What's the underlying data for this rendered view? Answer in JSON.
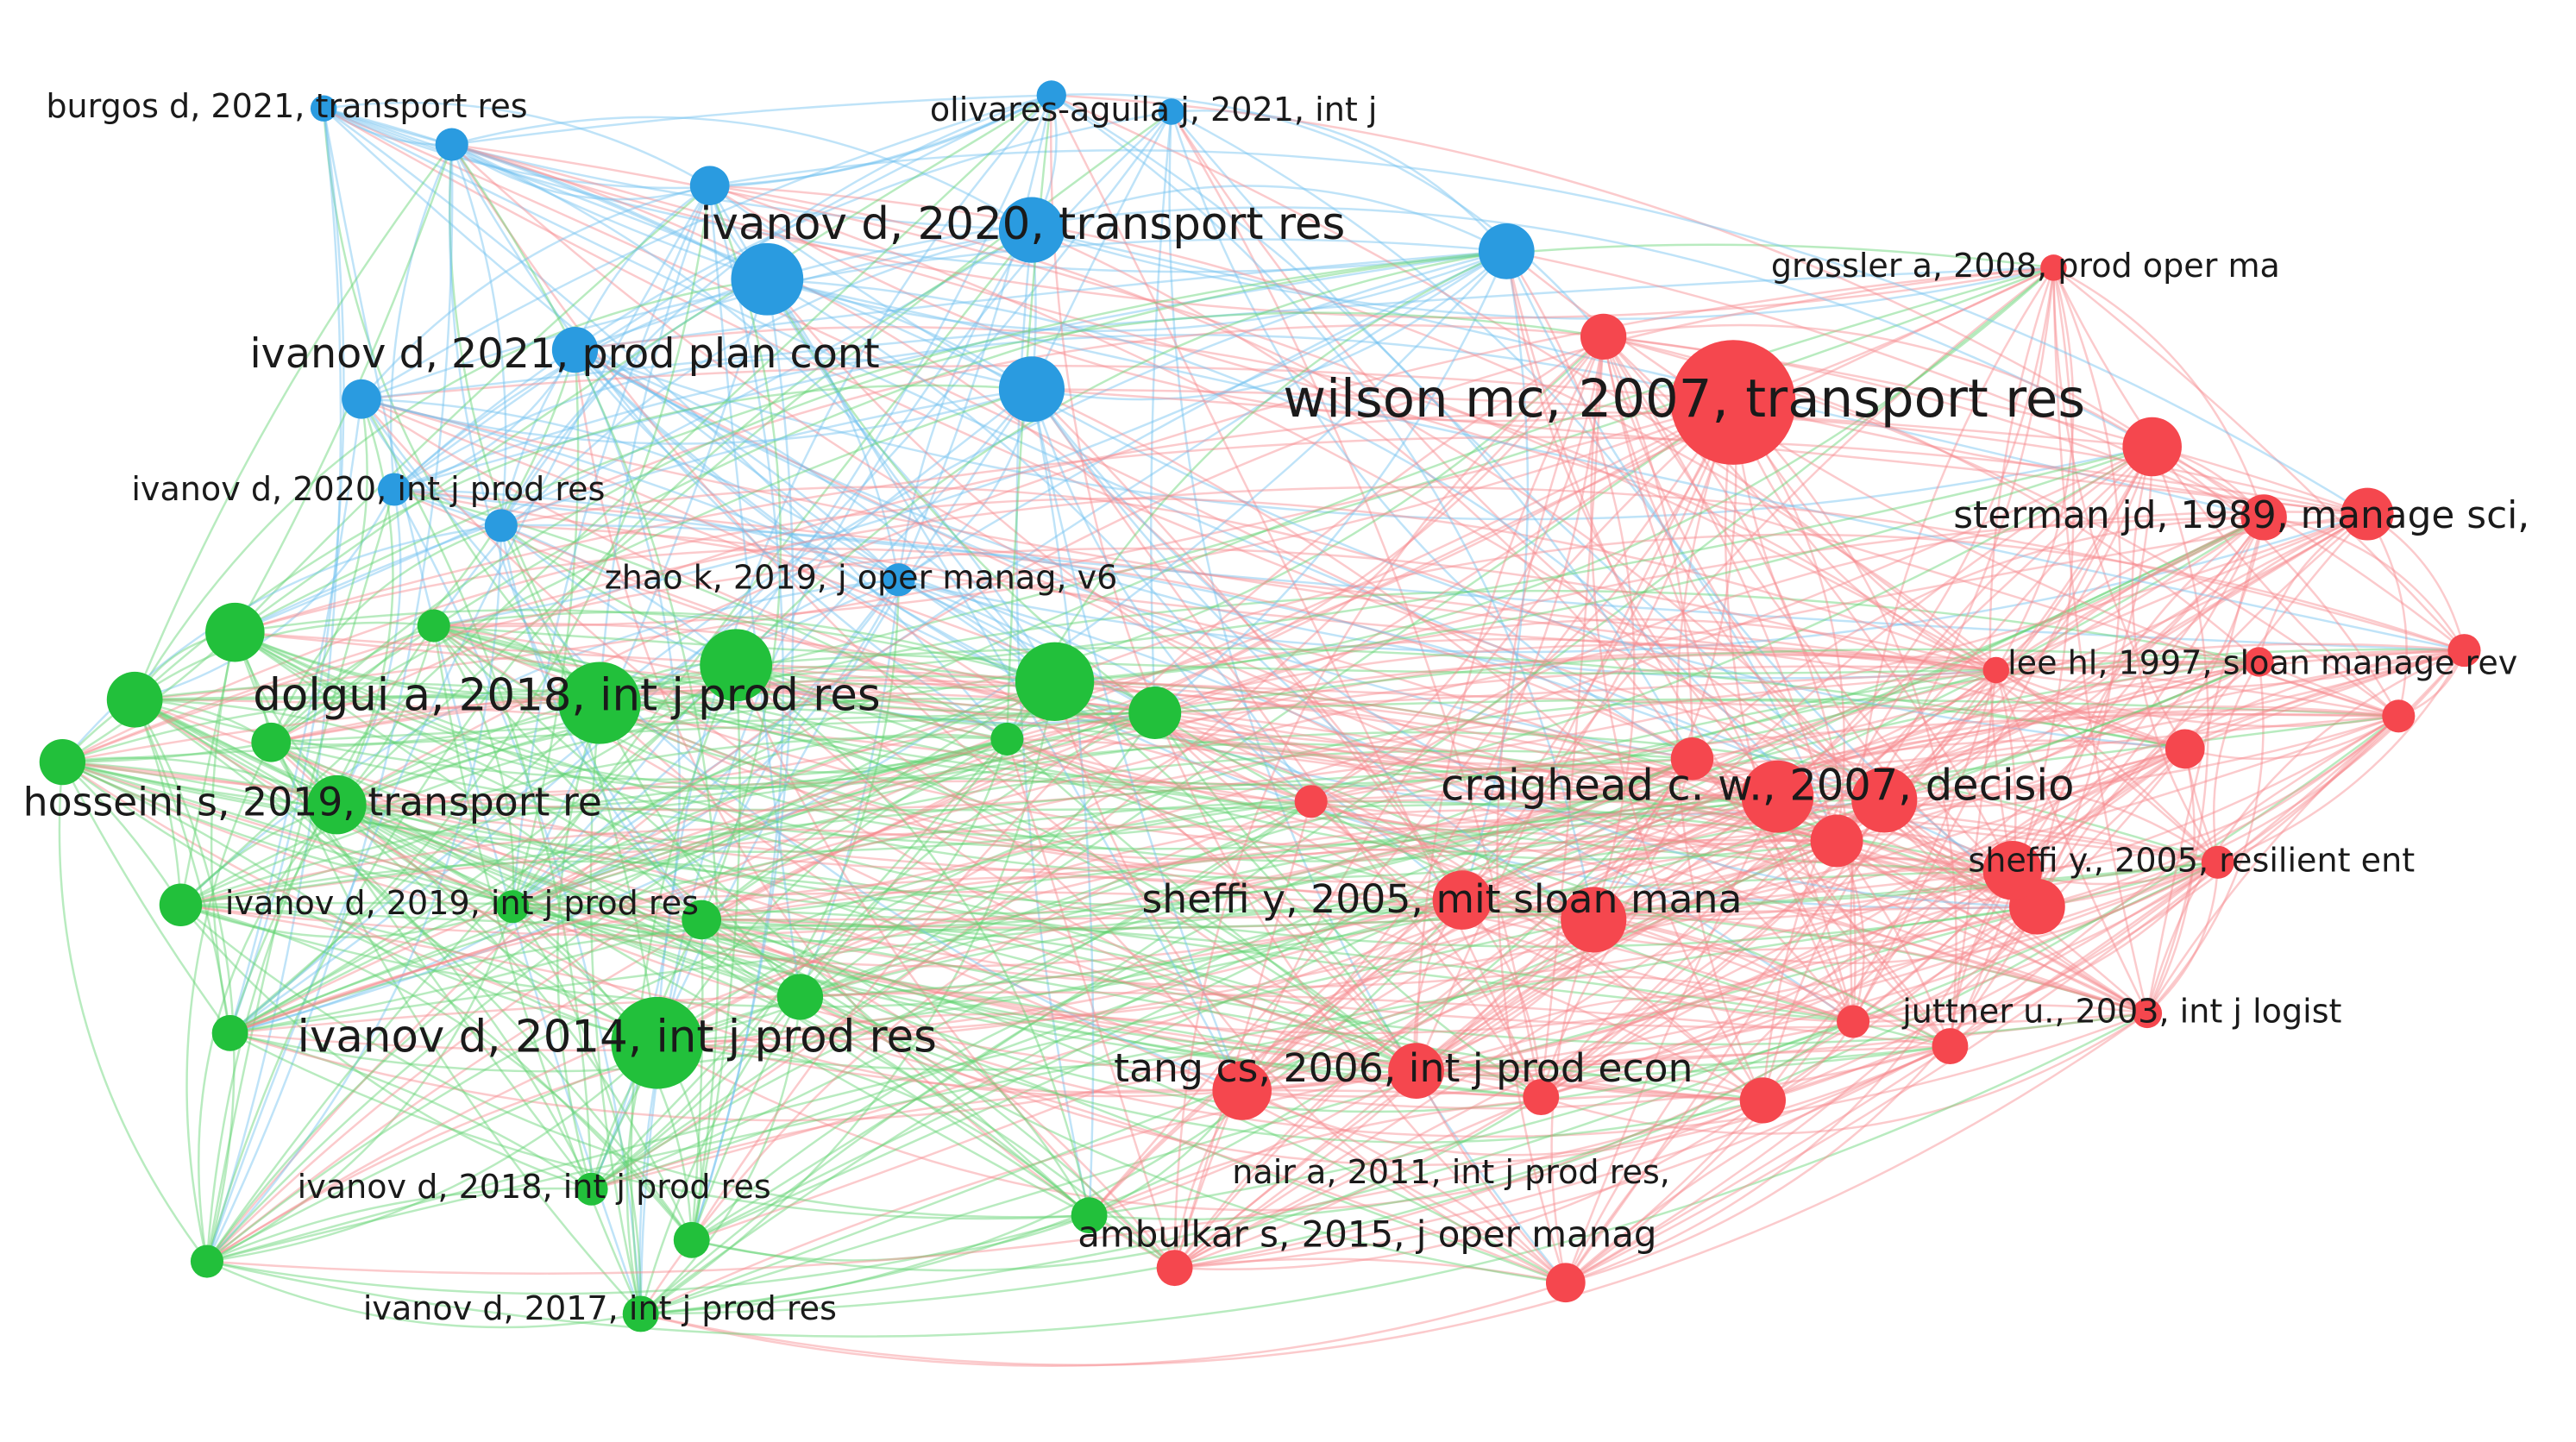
{
  "nodes": [
    {
      "label": "burgos d, 2021, transport res"
    },
    {
      "label": "olivares-aguila j, 2021, int j"
    },
    {
      "label": "ivanov d, 2020, transport res"
    },
    {
      "label": "ivanov d, 2021, prod plan cont"
    },
    {
      "label": "ivanov d, 2020, int j prod res"
    },
    {
      "label": "zhao k, 2019, j oper manag, v6"
    },
    {
      "label": "dolgui a, 2018, int j prod res"
    },
    {
      "label": "hosseini s, 2019, transport re"
    },
    {
      "label": "ivanov d, 2019, int j prod res"
    },
    {
      "label": "ivanov d, 2014, int j prod res"
    },
    {
      "label": "ivanov d, 2018, int j prod res"
    },
    {
      "label": "ivanov d, 2017, int j prod res"
    },
    {
      "label": "wilson mc, 2007, transport res"
    },
    {
      "label": "grossler a, 2008, prod oper ma"
    },
    {
      "label": "sterman jd, 1989, manage sci,"
    },
    {
      "label": "lee hl, 1997, sloan manage rev"
    },
    {
      "label": "craighead c. w., 2007, decisio"
    },
    {
      "label": "sheffi y., 2005, resilient ent"
    },
    {
      "label": "sheffi y, 2005, mit sloan mana"
    },
    {
      "label": "juttner u., 2003, int j logist"
    },
    {
      "label": "tang cs, 2006, int j prod econ"
    },
    {
      "label": "nair a, 2011, int j prod res,"
    },
    {
      "label": "ambulkar s, 2015, j oper manag"
    }
  ]
}
